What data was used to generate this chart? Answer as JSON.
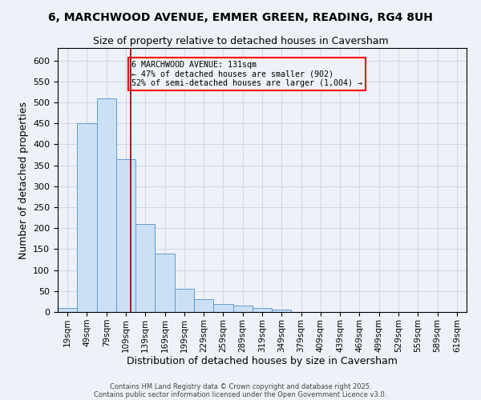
{
  "title1": "6, MARCHWOOD AVENUE, EMMER GREEN, READING, RG4 8UH",
  "title2": "Size of property relative to detached houses in Caversham",
  "xlabel": "Distribution of detached houses by size in Caversham",
  "ylabel": "Number of detached properties",
  "bin_labels": [
    "19sqm",
    "49sqm",
    "79sqm",
    "109sqm",
    "139sqm",
    "169sqm",
    "199sqm",
    "229sqm",
    "259sqm",
    "289sqm",
    "319sqm",
    "349sqm",
    "379sqm",
    "409sqm",
    "439sqm",
    "469sqm",
    "499sqm",
    "529sqm",
    "559sqm",
    "589sqm",
    "619sqm"
  ],
  "bar_values": [
    10,
    450,
    510,
    365,
    210,
    140,
    55,
    30,
    20,
    15,
    10,
    5,
    0,
    0,
    0,
    0,
    0,
    0,
    0,
    0,
    0
  ],
  "bin_edges": [
    19,
    49,
    79,
    109,
    139,
    169,
    199,
    229,
    259,
    289,
    319,
    349,
    379,
    409,
    439,
    469,
    499,
    529,
    559,
    589,
    619
  ],
  "property_size": 131,
  "bar_facecolor": "#cce0f5",
  "bar_edgecolor": "#5b9bd5",
  "vline_color": "#8B0000",
  "annotation_text": "6 MARCHWOOD AVENUE: 131sqm\n← 47% of detached houses are smaller (902)\n52% of semi-detached houses are larger (1,004) →",
  "annotation_box_edgecolor": "red",
  "grid_color": "#d0d8e8",
  "background_color": "#eef2f8",
  "footer1": "Contains HM Land Registry data © Crown copyright and database right 2025.",
  "footer2": "Contains public sector information licensed under the Open Government Licence v3.0.",
  "ylim": [
    0,
    630
  ],
  "yticks": [
    0,
    50,
    100,
    150,
    200,
    250,
    300,
    350,
    400,
    450,
    500,
    550,
    600
  ]
}
